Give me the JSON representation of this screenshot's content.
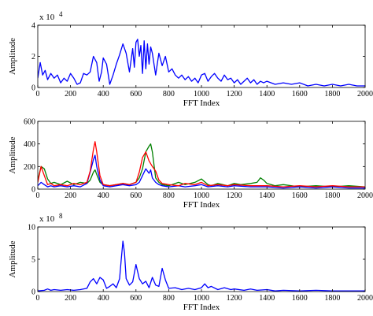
{
  "chart_data": [
    {
      "type": "line",
      "xlabel": "FFT Index",
      "ylabel": "Amplitude",
      "xlim": [
        0,
        2000
      ],
      "ylim": [
        0,
        4
      ],
      "exponent": "x 10",
      "exponent_power": "4",
      "xticks": [
        "0",
        "200",
        "400",
        "600",
        "800",
        "1000",
        "1200",
        "1400",
        "1600",
        "1800",
        "2000"
      ],
      "yticks": [
        "0",
        "2",
        "4"
      ],
      "series": [
        {
          "color": "#0000ff",
          "x": [
            0,
            15,
            30,
            45,
            60,
            80,
            100,
            120,
            140,
            160,
            180,
            200,
            220,
            240,
            260,
            280,
            300,
            320,
            340,
            360,
            375,
            390,
            400,
            420,
            440,
            460,
            480,
            500,
            520,
            540,
            560,
            580,
            590,
            600,
            610,
            620,
            630,
            640,
            650,
            660,
            670,
            680,
            690,
            700,
            720,
            740,
            760,
            780,
            800,
            820,
            840,
            860,
            880,
            900,
            920,
            940,
            960,
            980,
            1000,
            1020,
            1040,
            1060,
            1080,
            1100,
            1120,
            1140,
            1160,
            1180,
            1200,
            1220,
            1240,
            1260,
            1280,
            1300,
            1320,
            1340,
            1360,
            1380,
            1400,
            1450,
            1500,
            1550,
            1600,
            1650,
            1700,
            1750,
            1800,
            1850,
            1900,
            1950,
            2000
          ],
          "y": [
            0.6,
            1.6,
            0.8,
            1.1,
            0.5,
            0.9,
            0.6,
            0.8,
            0.3,
            0.6,
            0.4,
            0.9,
            0.6,
            0.2,
            0.3,
            0.9,
            0.8,
            1.0,
            2.0,
            1.6,
            0.4,
            1.0,
            1.9,
            1.5,
            0.2,
            0.8,
            1.5,
            2.1,
            2.8,
            2.2,
            1.0,
            2.5,
            1.3,
            2.9,
            3.1,
            2.0,
            2.7,
            0.9,
            3.0,
            1.2,
            2.8,
            1.5,
            2.6,
            2.2,
            0.8,
            2.2,
            1.4,
            2.0,
            1.0,
            1.2,
            0.8,
            0.6,
            0.8,
            0.5,
            0.7,
            0.4,
            0.6,
            0.3,
            0.8,
            0.9,
            0.4,
            0.7,
            0.9,
            0.6,
            0.4,
            0.8,
            0.5,
            0.6,
            0.3,
            0.5,
            0.2,
            0.4,
            0.6,
            0.3,
            0.5,
            0.2,
            0.4,
            0.3,
            0.4,
            0.2,
            0.3,
            0.2,
            0.3,
            0.1,
            0.2,
            0.1,
            0.2,
            0.1,
            0.2,
            0.1,
            0.1
          ]
        }
      ]
    },
    {
      "type": "line",
      "xlabel": "FFT Index",
      "ylabel": "Amplitude",
      "xlim": [
        0,
        2000
      ],
      "ylim": [
        0,
        600
      ],
      "xticks": [
        "0",
        "200",
        "400",
        "600",
        "800",
        "1000",
        "1200",
        "1400",
        "1600",
        "1800",
        "2000"
      ],
      "yticks": [
        "0",
        "200",
        "400",
        "600"
      ],
      "series": [
        {
          "color": "#008000",
          "x": [
            0,
            20,
            40,
            60,
            80,
            100,
            140,
            180,
            220,
            260,
            300,
            320,
            340,
            350,
            360,
            380,
            400,
            440,
            480,
            520,
            560,
            600,
            620,
            640,
            660,
            680,
            690,
            700,
            720,
            740,
            760,
            800,
            860,
            900,
            960,
            1000,
            1040,
            1060,
            1100,
            1160,
            1200,
            1240,
            1300,
            1340,
            1360,
            1380,
            1400,
            1450,
            1500,
            1600,
            1700,
            1800,
            1900,
            2000
          ],
          "y": [
            80,
            200,
            180,
            90,
            50,
            60,
            40,
            70,
            40,
            60,
            50,
            80,
            150,
            170,
            130,
            60,
            40,
            30,
            40,
            50,
            40,
            60,
            100,
            180,
            330,
            380,
            400,
            330,
            100,
            60,
            40,
            30,
            60,
            40,
            60,
            90,
            40,
            30,
            50,
            30,
            50,
            40,
            50,
            60,
            100,
            80,
            50,
            30,
            40,
            20,
            30,
            20,
            30,
            20
          ]
        },
        {
          "color": "#0000ff",
          "x": [
            0,
            20,
            40,
            60,
            80,
            100,
            140,
            180,
            220,
            260,
            300,
            320,
            340,
            350,
            360,
            380,
            400,
            440,
            480,
            520,
            560,
            600,
            620,
            640,
            660,
            680,
            690,
            700,
            720,
            740,
            760,
            800,
            860,
            900,
            960,
            1000,
            1040,
            1100,
            1160,
            1200,
            1300,
            1400,
            1500,
            1600,
            1700,
            1800,
            1900,
            2000
          ],
          "y": [
            30,
            60,
            40,
            20,
            30,
            20,
            30,
            20,
            30,
            20,
            50,
            150,
            260,
            300,
            200,
            80,
            30,
            20,
            30,
            40,
            30,
            40,
            60,
            120,
            180,
            140,
            170,
            100,
            60,
            40,
            30,
            20,
            30,
            20,
            30,
            40,
            20,
            30,
            20,
            30,
            20,
            20,
            10,
            20,
            10,
            20,
            10,
            10
          ]
        },
        {
          "color": "#ff0000",
          "x": [
            0,
            20,
            40,
            60,
            80,
            100,
            140,
            180,
            220,
            260,
            300,
            320,
            340,
            350,
            360,
            380,
            400,
            440,
            480,
            520,
            560,
            600,
            620,
            640,
            660,
            680,
            700,
            720,
            740,
            760,
            800,
            860,
            900,
            960,
            1000,
            1040,
            1100,
            1160,
            1200,
            1300,
            1400,
            1500,
            1600,
            1700,
            1800,
            1900,
            2000
          ],
          "y": [
            60,
            200,
            120,
            40,
            50,
            30,
            40,
            30,
            50,
            40,
            60,
            160,
            350,
            420,
            330,
            120,
            40,
            30,
            40,
            50,
            40,
            60,
            150,
            280,
            330,
            250,
            200,
            160,
            80,
            50,
            40,
            30,
            50,
            40,
            60,
            30,
            40,
            30,
            40,
            30,
            30,
            20,
            30,
            20,
            30,
            20,
            20
          ]
        }
      ]
    },
    {
      "type": "line",
      "xlabel": "FFT Index",
      "ylabel": "Amplitude",
      "xlim": [
        0,
        2000
      ],
      "ylim": [
        0,
        10
      ],
      "exponent": "x 10",
      "exponent_power": "8",
      "xticks": [
        "0",
        "200",
        "400",
        "600",
        "800",
        "1000",
        "1200",
        "1400",
        "1600",
        "1800",
        "2000"
      ],
      "yticks": [
        "0",
        "5",
        "10"
      ],
      "series": [
        {
          "color": "#0000ff",
          "x": [
            0,
            40,
            60,
            80,
            100,
            140,
            180,
            220,
            260,
            300,
            320,
            340,
            360,
            380,
            400,
            420,
            440,
            460,
            480,
            500,
            510,
            520,
            530,
            540,
            560,
            580,
            600,
            620,
            640,
            660,
            680,
            700,
            720,
            740,
            760,
            780,
            800,
            840,
            880,
            920,
            960,
            1000,
            1020,
            1040,
            1060,
            1100,
            1140,
            1180,
            1200,
            1260,
            1300,
            1340,
            1400,
            1450,
            1500,
            1600,
            1700,
            1800,
            1900,
            2000
          ],
          "y": [
            0.1,
            0.2,
            0.4,
            0.2,
            0.3,
            0.2,
            0.3,
            0.2,
            0.3,
            0.5,
            1.5,
            2.0,
            1.2,
            2.2,
            1.8,
            0.5,
            0.8,
            1.2,
            0.6,
            2.0,
            5.0,
            7.8,
            6.0,
            2.0,
            1.0,
            1.5,
            4.2,
            2.0,
            1.2,
            1.6,
            0.6,
            2.2,
            1.0,
            0.8,
            3.6,
            1.8,
            0.5,
            0.6,
            0.3,
            0.5,
            0.3,
            0.6,
            1.2,
            0.6,
            0.8,
            0.3,
            0.6,
            0.3,
            0.4,
            0.2,
            0.4,
            0.2,
            0.3,
            0.1,
            0.2,
            0.1,
            0.2,
            0.1,
            0.1,
            0.1
          ]
        }
      ]
    }
  ]
}
